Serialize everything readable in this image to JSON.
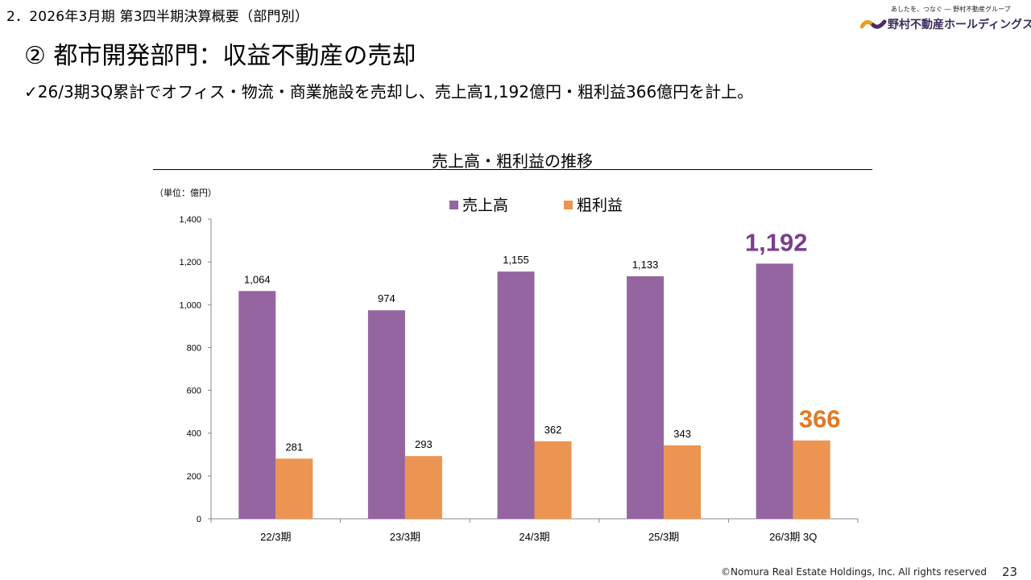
{
  "header": {
    "section_title": "2．2026年3月期 第3四半期決算概要（部門別）",
    "main_title": "② 都市開発部門：収益不動産の売却",
    "bullet_mark": "✓",
    "bullet_text": "26/3期3Q累計でオフィス・物流・商業施設を売却し、売上高1,192億円・粗利益366億円を計上。"
  },
  "logo": {
    "tagline": "あしたを、つなぐ ― 野村不動産グループ",
    "name": "野村不動産ホールディングス"
  },
  "footer": {
    "copyright": "©Nomura Real Estate Holdings, Inc. All rights reserved",
    "page": "23"
  },
  "colors": {
    "sales": "#9565a1",
    "profit": "#ec9451",
    "highlight_sales": "#7a3f8c",
    "highlight_profit": "#e07a26"
  },
  "chart_data": {
    "type": "bar",
    "title": "売上高・粗利益の推移",
    "unit_label": "（単位：億円）",
    "categories": [
      "22/3期",
      "23/3期",
      "24/3期",
      "25/3期",
      "26/3期 3Q"
    ],
    "series": [
      {
        "name": "売上高",
        "values": [
          1064,
          974,
          1155,
          1133,
          1192
        ],
        "labels": [
          "1,064",
          "974",
          "1,155",
          "1,133",
          "1,192"
        ]
      },
      {
        "name": "粗利益",
        "values": [
          281,
          293,
          362,
          343,
          366
        ],
        "labels": [
          "281",
          "293",
          "362",
          "343",
          "366"
        ]
      }
    ],
    "ylim": [
      0,
      1400
    ],
    "yticks": [
      0,
      200,
      400,
      600,
      800,
      1000,
      1200,
      1400
    ],
    "ytick_labels": [
      "0",
      "200",
      "400",
      "600",
      "800",
      "1,000",
      "1,200",
      "1,400"
    ],
    "legend_position": "top"
  }
}
